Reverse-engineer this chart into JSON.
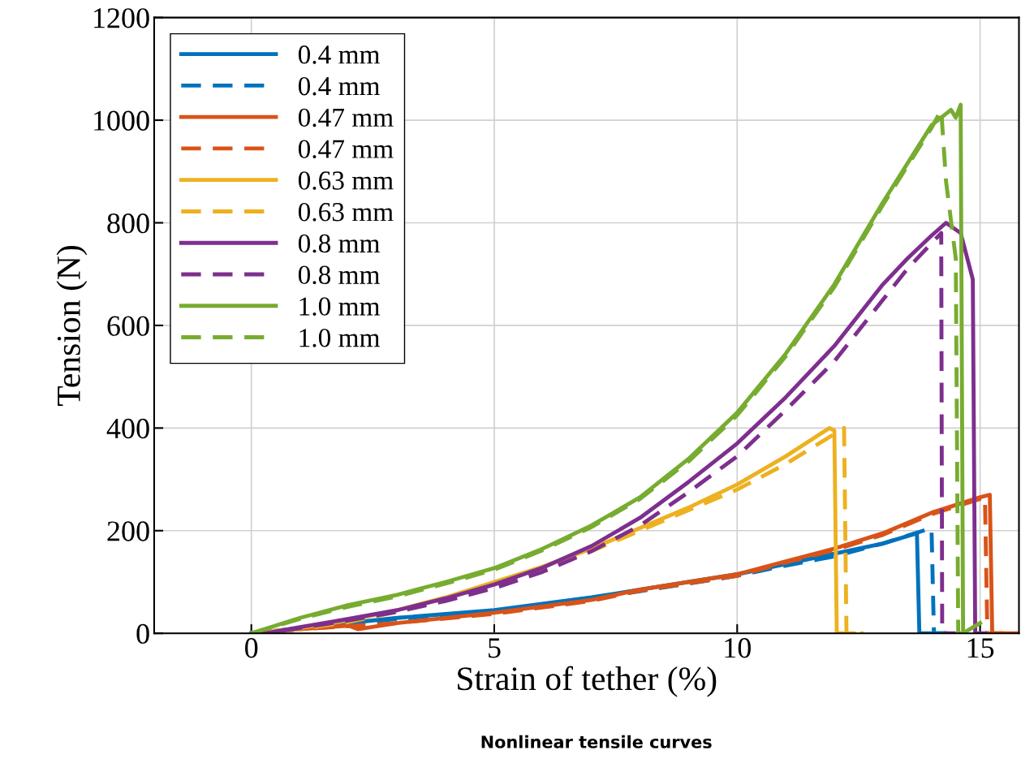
{
  "chart_data": {
    "type": "line",
    "xlabel": "Strain of tether (%)",
    "ylabel": "Tension (N)",
    "annotations": [
      "Nonlinear tensile curves"
    ],
    "xlim": [
      -2,
      15.8
    ],
    "ylim": [
      0,
      1200
    ],
    "xticks": [
      0,
      5,
      10,
      15
    ],
    "yticks": [
      0,
      200,
      400,
      600,
      800,
      1000,
      1200
    ],
    "grid": true,
    "legend": "top left",
    "series": [
      {
        "name": "0.4 mm",
        "color": "#0072bd",
        "line_style": "solid",
        "x": [
          0,
          1,
          2,
          3,
          5,
          7,
          8,
          10,
          11,
          12,
          13,
          13.7,
          13.75,
          14.3
        ],
        "values": [
          0,
          10,
          20,
          30,
          45,
          70,
          85,
          115,
          135,
          155,
          175,
          195,
          0,
          0
        ]
      },
      {
        "name": "0.4 mm",
        "color": "#0072bd",
        "line_style": "dashed",
        "x": [
          0,
          1,
          2,
          3,
          5,
          7,
          8,
          10,
          11,
          12,
          13,
          14,
          14.05,
          14.3
        ],
        "values": [
          0,
          8,
          18,
          28,
          42,
          68,
          82,
          112,
          132,
          150,
          175,
          205,
          0,
          0
        ]
      },
      {
        "name": "0.47 mm",
        "color": "#d95319",
        "line_style": "solid",
        "x": [
          0,
          1,
          2,
          2.2,
          3,
          5,
          7,
          8,
          10,
          11,
          12,
          13,
          14,
          15,
          15.2,
          15.25,
          15.8
        ],
        "values": [
          0,
          8,
          15,
          8,
          20,
          40,
          65,
          85,
          115,
          140,
          165,
          195,
          235,
          265,
          270,
          0,
          0
        ]
      },
      {
        "name": "0.47 mm",
        "color": "#d95319",
        "line_style": "dashed",
        "x": [
          0,
          1,
          2,
          3,
          5,
          7,
          8,
          10,
          11,
          12,
          13,
          14,
          15,
          15.1,
          15.15,
          15.5
        ],
        "values": [
          0,
          8,
          14,
          20,
          38,
          63,
          83,
          112,
          138,
          162,
          192,
          232,
          262,
          265,
          0,
          0
        ]
      },
      {
        "name": "0.63 mm",
        "color": "#edb120",
        "line_style": "solid",
        "x": [
          0,
          1,
          2,
          3,
          4,
          5,
          6,
          7,
          8,
          9,
          10,
          11,
          11.9,
          12.0,
          12.05,
          12.4
        ],
        "values": [
          0,
          10,
          25,
          45,
          70,
          100,
          130,
          165,
          205,
          245,
          290,
          345,
          400,
          395,
          0,
          0
        ]
      },
      {
        "name": "0.63 mm",
        "color": "#edb120",
        "line_style": "dashed",
        "x": [
          0,
          1,
          2,
          3,
          4,
          5,
          6,
          7,
          8,
          9,
          10,
          11,
          12.2,
          12.25,
          12.6
        ],
        "values": [
          0,
          8,
          22,
          42,
          66,
          95,
          125,
          160,
          200,
          240,
          280,
          330,
          400,
          0,
          0
        ]
      },
      {
        "name": "0.8 mm",
        "color": "#7e2f8e",
        "line_style": "solid",
        "x": [
          0,
          0.3,
          1,
          2,
          3,
          4,
          5,
          6,
          7,
          8,
          9,
          10,
          11,
          12,
          13,
          13.5,
          14,
          14.3,
          14.6,
          14.85,
          14.9,
          15.1
        ],
        "values": [
          0,
          0,
          12,
          28,
          45,
          68,
          95,
          128,
          170,
          225,
          295,
          370,
          460,
          560,
          680,
          730,
          775,
          800,
          780,
          690,
          0,
          0
        ]
      },
      {
        "name": "0.8 mm",
        "color": "#7e2f8e",
        "line_style": "dashed",
        "x": [
          0,
          0.3,
          1,
          2,
          3,
          4,
          5,
          6,
          7,
          8,
          9,
          10,
          11,
          12,
          13,
          13.5,
          14,
          14.2,
          14.22,
          14.5
        ],
        "values": [
          0,
          0,
          10,
          25,
          42,
          63,
          88,
          120,
          160,
          210,
          275,
          345,
          435,
          530,
          650,
          710,
          760,
          780,
          0,
          0
        ]
      },
      {
        "name": "1.0 mm",
        "color": "#77ac30",
        "line_style": "solid",
        "x": [
          0,
          1,
          2,
          3,
          4,
          5,
          6,
          7,
          8,
          9,
          10,
          11,
          12,
          13,
          14,
          14.4,
          14.5,
          14.6,
          14.65,
          15.0
        ],
        "values": [
          0,
          30,
          55,
          75,
          100,
          127,
          165,
          210,
          265,
          340,
          430,
          545,
          680,
          840,
          990,
          1020,
          1005,
          1030,
          0,
          20
        ]
      },
      {
        "name": "1.0 mm",
        "color": "#77ac30",
        "line_style": "dashed",
        "x": [
          0,
          1,
          2,
          3,
          4,
          5,
          6,
          7,
          8,
          9,
          10,
          11,
          12,
          13,
          14,
          14.2,
          14.3,
          14.5,
          14.55,
          14.8
        ],
        "values": [
          0,
          28,
          52,
          72,
          97,
          124,
          162,
          207,
          262,
          335,
          425,
          540,
          675,
          835,
          985,
          1020,
          880,
          730,
          0,
          0
        ]
      }
    ]
  }
}
